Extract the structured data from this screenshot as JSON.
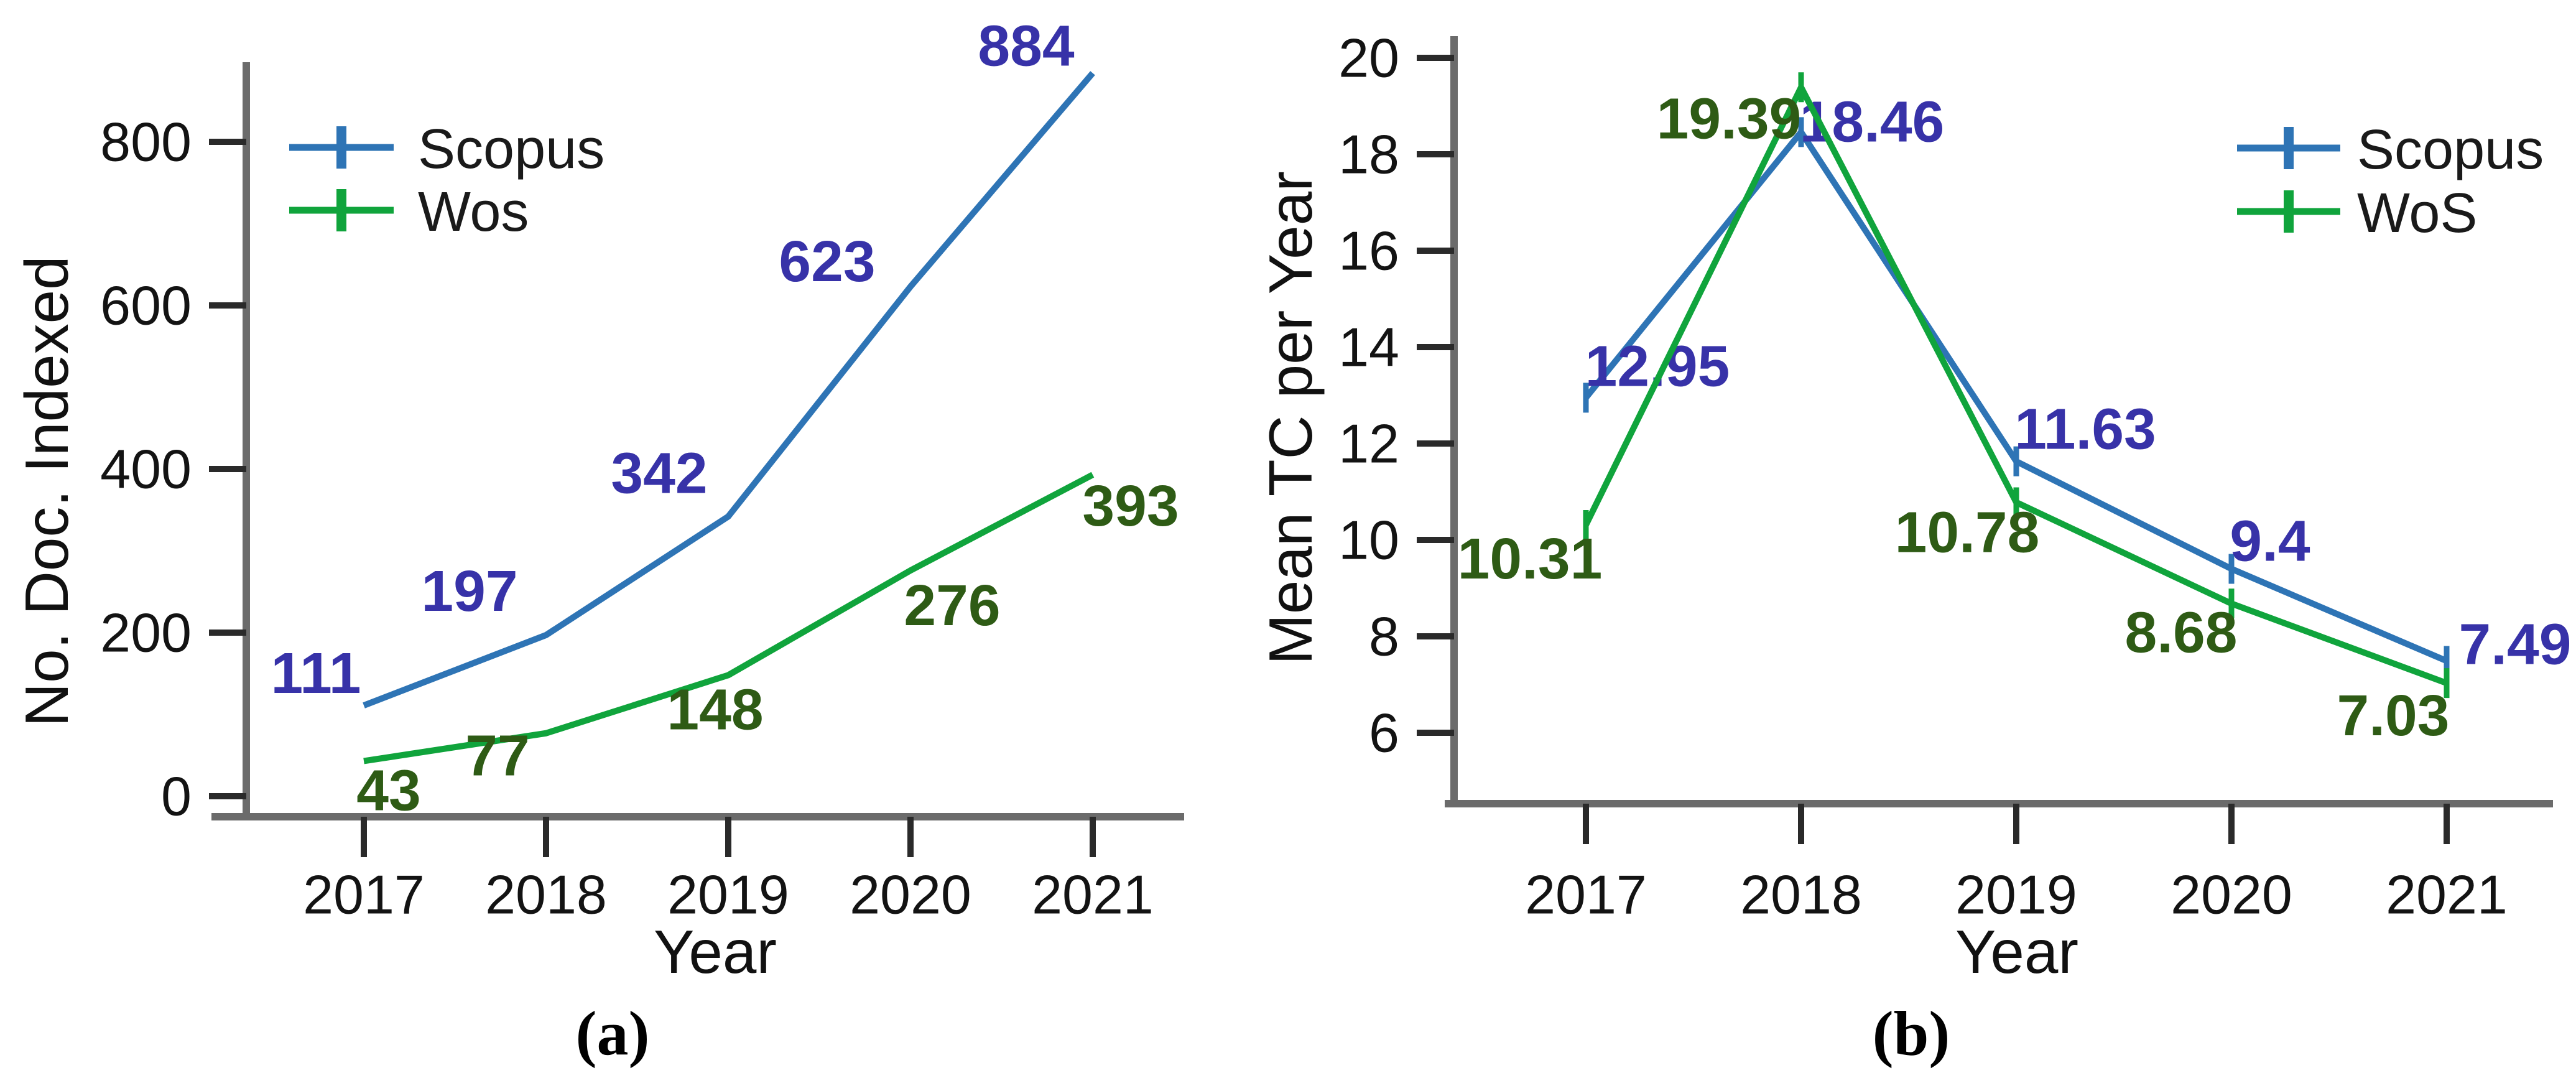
{
  "figure": {
    "background": "#ffffff"
  },
  "colors": {
    "scopus_line": "#2e74b5",
    "wos_line": "#10a43c",
    "scopus_label": "#3732a8",
    "wos_label": "#2e5b15",
    "axis": "#6b6b6b",
    "tick": "#2a2a2a",
    "tick_text": "#131313"
  },
  "chart_data": [
    {
      "id": "a",
      "type": "line",
      "caption": "(a)",
      "xlabel": "Year",
      "ylabel": "No. Doc. Indexed",
      "categories": [
        "2017",
        "2018",
        "2019",
        "2020",
        "2021"
      ],
      "yticks": [
        0,
        200,
        400,
        600,
        800
      ],
      "ylim": [
        0,
        922
      ],
      "grid": false,
      "legend_position": "top-left",
      "series": [
        {
          "name": "Scopus",
          "color_key": "scopus_line",
          "label_color_key": "scopus_label",
          "values": [
            111,
            197,
            342,
            623,
            884
          ],
          "labels": [
            "111",
            "197",
            "342",
            "623",
            "884"
          ]
        },
        {
          "name": "Wos",
          "color_key": "wos_line",
          "label_color_key": "wos_label",
          "values": [
            43,
            77,
            148,
            276,
            393
          ],
          "labels": [
            "43",
            "77",
            "148",
            "276",
            "393"
          ]
        }
      ]
    },
    {
      "id": "b",
      "type": "line",
      "caption": "(b)",
      "xlabel": "Year",
      "ylabel": "Mean TC per Year",
      "categories": [
        "2017",
        "2018",
        "2019",
        "2020",
        "2021"
      ],
      "yticks": [
        6,
        8,
        10,
        12,
        14,
        16,
        18,
        20
      ],
      "ylim": [
        4.5,
        20.9
      ],
      "grid": false,
      "legend_position": "top-right",
      "series": [
        {
          "name": "Scopus",
          "color_key": "scopus_line",
          "label_color_key": "scopus_label",
          "values": [
            12.95,
            18.46,
            11.63,
            9.4,
            7.49
          ],
          "labels": [
            "12.95",
            "18.46",
            "11.63",
            "9.4",
            "7.49"
          ]
        },
        {
          "name": "WoS",
          "color_key": "wos_line",
          "label_color_key": "wos_label",
          "values": [
            10.31,
            19.39,
            10.78,
            8.68,
            7.03
          ],
          "labels": [
            "10.31",
            "19.39",
            "10.78",
            "8.68",
            "7.03"
          ]
        }
      ]
    }
  ]
}
